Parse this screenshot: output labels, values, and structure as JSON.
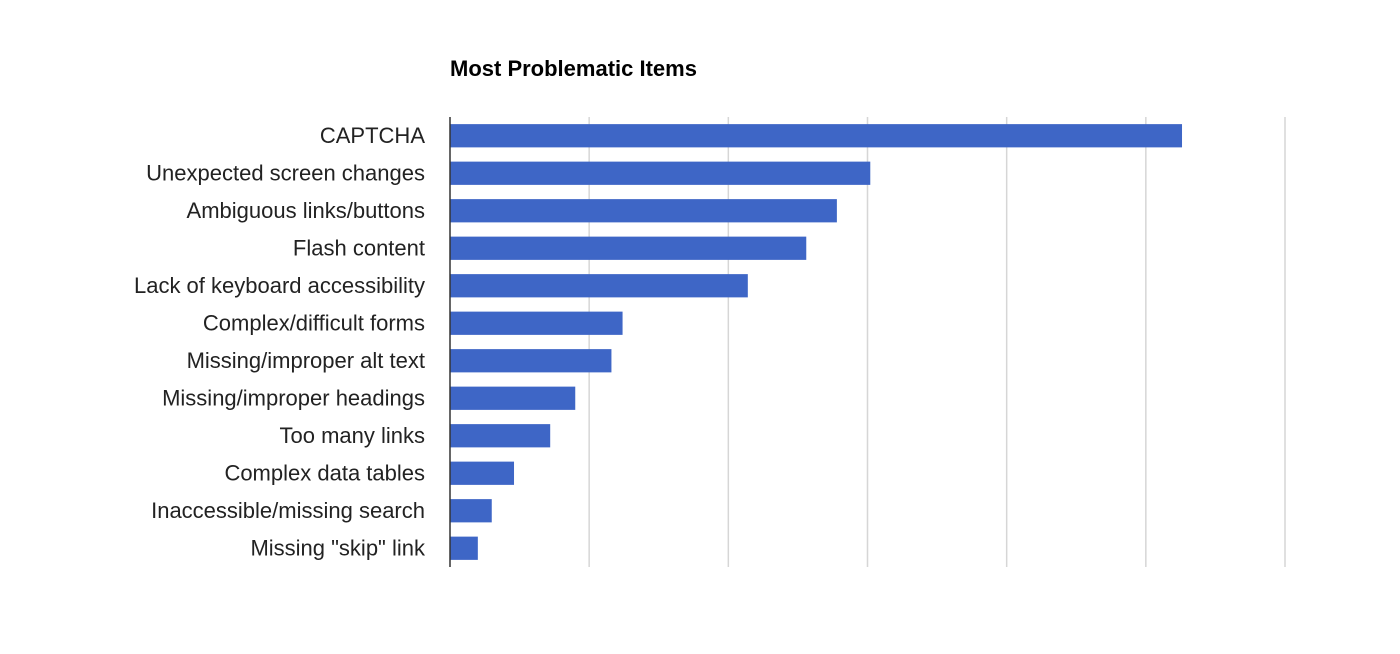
{
  "chart_data": {
    "type": "bar",
    "orientation": "horizontal",
    "title": "Most Problematic Items",
    "xlabel": "",
    "ylabel": "",
    "xlim": [
      0,
      30
    ],
    "grid": true,
    "legend": "none",
    "bar_color": "#3e66c6",
    "categories": [
      "CAPTCHA",
      "Unexpected screen changes",
      "Ambiguous links/buttons",
      "Flash content",
      "Lack of keyboard accessibility",
      "Complex/difficult forms",
      "Missing/improper alt text",
      "Missing/improper headings",
      "Too many links",
      "Complex data tables",
      "Inaccessible/missing search",
      "Missing \"skip\" link"
    ],
    "values": [
      26.3,
      15.1,
      13.9,
      12.8,
      10.7,
      6.2,
      5.8,
      4.5,
      3.6,
      2.3,
      1.5,
      1.0
    ]
  }
}
